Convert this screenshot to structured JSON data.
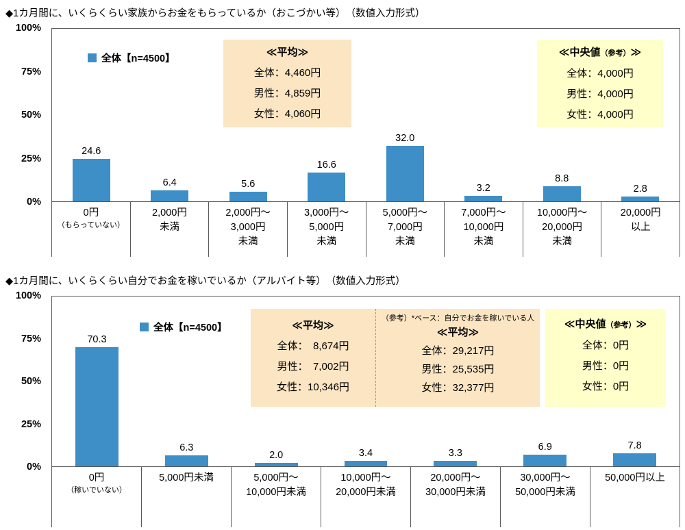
{
  "page": {
    "background": "#ffffff"
  },
  "chart_data": [
    {
      "type": "bar",
      "title": "◆1カ月間に、いくらくらい家族からお金をもらっているか（おこづかい等）　（数値入力形式）",
      "legend": "全体【n=4500】",
      "bar_color": "#3E8EC7",
      "ylim": [
        0,
        100
      ],
      "yticks": [
        "100%",
        "75%",
        "50%",
        "25%",
        "0%"
      ],
      "grid": false,
      "legend_position": "inside-top-left",
      "categories": [
        [
          "0円",
          "（もらっていない）"
        ],
        [
          "2,000円",
          "未満"
        ],
        [
          "2,000円～",
          "3,000円",
          "未満"
        ],
        [
          "3,000円～",
          "5,000円",
          "未満"
        ],
        [
          "5,000円～",
          "7,000円",
          "未満"
        ],
        [
          "7,000円～",
          "10,000円",
          "未満"
        ],
        [
          "10,000円～",
          "20,000円",
          "未満"
        ],
        [
          "20,000円",
          "以上"
        ]
      ],
      "values": [
        24.6,
        6.4,
        5.6,
        16.6,
        32.0,
        3.2,
        8.8,
        2.8
      ],
      "mean_box": {
        "heading": "≪平均≫",
        "rows": [
          "全体：4,460円",
          "男性：4,859円",
          "女性：4,060円"
        ]
      },
      "median_box": {
        "heading_main": "≪中央値",
        "heading_small": "（参考）",
        "heading_close": "≫",
        "rows": [
          "全体：4,000円",
          "男性：4,000円",
          "女性：4,000円"
        ]
      }
    },
    {
      "type": "bar",
      "title": "◆1カ月間に、いくらくらい自分でお金を稼いでいるか（アルバイト等）　（数値入力形式）",
      "legend": "全体【n=4500】",
      "bar_color": "#3E8EC7",
      "ylim": [
        0,
        100
      ],
      "yticks": [
        "100%",
        "75%",
        "50%",
        "25%",
        "0%"
      ],
      "grid": false,
      "legend_position": "inside-top-left",
      "categories": [
        [
          "0円",
          "（稼いでいない）"
        ],
        [
          "5,000円未満"
        ],
        [
          "5,000円～",
          "10,000円未満"
        ],
        [
          "10,000円～",
          "20,000円未満"
        ],
        [
          "20,000円～",
          "30,000円未満"
        ],
        [
          "30,000円～",
          "50,000円未満"
        ],
        [
          "50,000円以上"
        ]
      ],
      "values": [
        70.3,
        6.3,
        2.0,
        3.4,
        3.3,
        6.9,
        7.8
      ],
      "mean_box": {
        "heading": "≪平均≫",
        "rows": [
          "全体：　8,674円",
          "男性：　7,002円",
          "女性：10,346円"
        ]
      },
      "mean_box_earners": {
        "note": "（参考）*ベース：自分でお金を稼いでいる人",
        "heading": "≪平均≫",
        "rows": [
          "全体：29,217円",
          "男性：25,535円",
          "女性：32,377円"
        ]
      },
      "median_box": {
        "heading_main": "≪中央値",
        "heading_small": "（参考）",
        "heading_close": "≫",
        "rows": [
          "全体：0円",
          "男性：0円",
          "女性：0円"
        ]
      }
    }
  ]
}
